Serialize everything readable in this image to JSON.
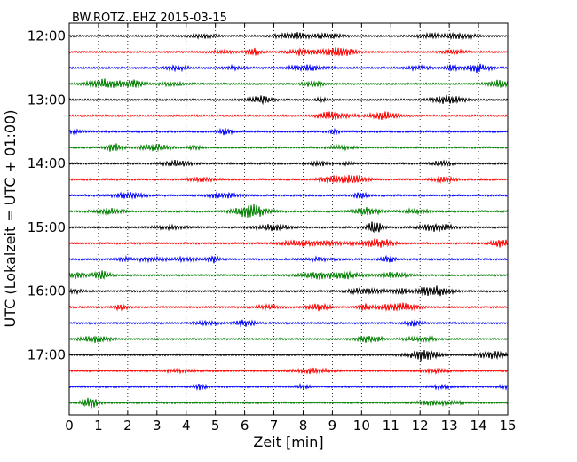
{
  "chart_data": {
    "type": "line",
    "subtype": "dayplot-seismogram",
    "title": "BW.ROTZ..EHZ 2015-03-15",
    "xlabel": "Zeit  [min]",
    "ylabel": "UTC (Lokalzeit = UTC + 01:00)",
    "xlim": [
      0,
      15
    ],
    "x_ticks": [
      "0",
      "1",
      "2",
      "3",
      "4",
      "5",
      "6",
      "7",
      "8",
      "9",
      "10",
      "11",
      "12",
      "13",
      "14",
      "15"
    ],
    "y_ticks": [
      "12:00",
      "13:00",
      "14:00",
      "15:00",
      "16:00",
      "17:00"
    ],
    "grid": "vertical dotted",
    "trace_minutes": 15,
    "trace_colors": [
      "#000000",
      "#ff0000",
      "#0000ff",
      "#007f00"
    ],
    "traces": [
      {
        "start": "12:00",
        "color": "#000000"
      },
      {
        "start": "12:15",
        "color": "#ff0000"
      },
      {
        "start": "12:30",
        "color": "#0000ff"
      },
      {
        "start": "12:45",
        "color": "#007f00"
      },
      {
        "start": "13:00",
        "color": "#000000"
      },
      {
        "start": "13:15",
        "color": "#ff0000"
      },
      {
        "start": "13:30",
        "color": "#0000ff"
      },
      {
        "start": "13:45",
        "color": "#007f00"
      },
      {
        "start": "14:00",
        "color": "#000000"
      },
      {
        "start": "14:15",
        "color": "#ff0000"
      },
      {
        "start": "14:30",
        "color": "#0000ff"
      },
      {
        "start": "14:45",
        "color": "#007f00"
      },
      {
        "start": "15:00",
        "color": "#000000"
      },
      {
        "start": "15:15",
        "color": "#ff0000"
      },
      {
        "start": "15:30",
        "color": "#0000ff"
      },
      {
        "start": "15:45",
        "color": "#007f00"
      },
      {
        "start": "16:00",
        "color": "#000000"
      },
      {
        "start": "16:15",
        "color": "#ff0000"
      },
      {
        "start": "16:30",
        "color": "#0000ff"
      },
      {
        "start": "16:45",
        "color": "#007f00"
      },
      {
        "start": "17:00",
        "color": "#000000"
      },
      {
        "start": "17:15",
        "color": "#ff0000"
      },
      {
        "start": "17:30",
        "color": "#0000ff"
      },
      {
        "start": "17:45",
        "color": "#007f00"
      }
    ]
  }
}
